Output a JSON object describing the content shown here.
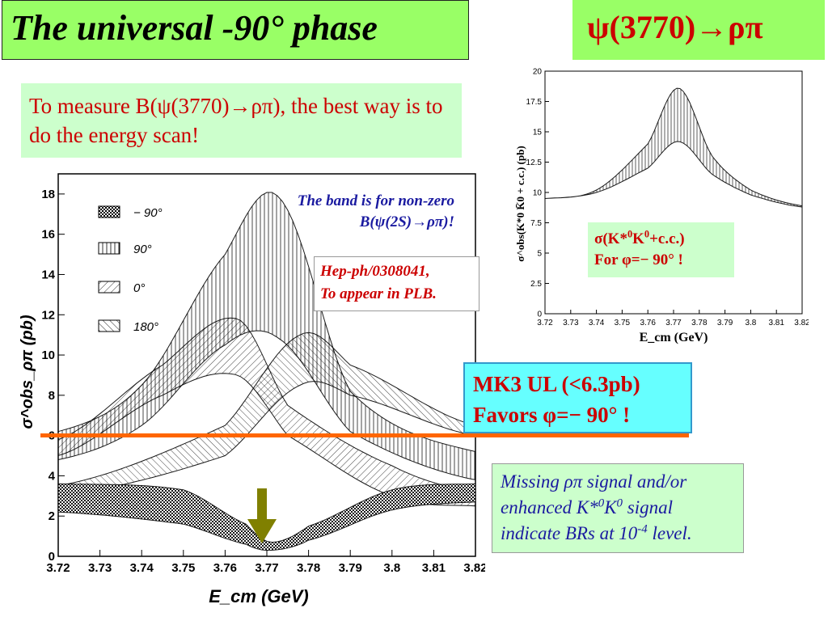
{
  "slide": {
    "title": "The universal -90° phase",
    "decay": "ψ(3770)→ρπ",
    "measure_text": "To measure B(ψ(3770)→ρπ), the best way is to do the energy scan!",
    "band_note_line1": "The band is for non-zero",
    "band_note_line2": "B(ψ(2S)→ρπ)!",
    "hep_line1": "Hep-ph/0308041,",
    "hep_line2": "To appear in PLB.",
    "mk3_line1": "MK3 UL (<6.3pb)",
    "mk3_line2": "Favors φ=− 90° !",
    "sig_line1_pre": "σ(K*",
    "sig_line1_sup1": "0",
    "sig_line1_mid": "K",
    "sig_line1_sup2": "0",
    "sig_line1_post": "+c.c.)",
    "sig_line2": "For φ=− 90° !",
    "missing_line1": "Missing ρπ signal and/or",
    "missing_line2_pre": "enhanced K*",
    "missing_line2_sup1": "0",
    "missing_line2_mid": "K",
    "missing_line2_sup2": "0",
    "missing_line2_post": " signal",
    "missing_line3_pre": "indicate BRs at 10",
    "missing_line3_sup": "-4",
    "missing_line3_post": " level."
  },
  "colors": {
    "title_bg": "#99ff66",
    "note_bg": "#ccffcc",
    "mk3_bg": "#66ffff",
    "accent_red": "#cc0000",
    "note_blue": "#1a1aa0",
    "ul_line": "#ff6600",
    "arrow": "#808000"
  },
  "chart_data": [
    {
      "type": "area",
      "xlabel": "E_cm (GeV)",
      "ylabel": "σ^obs_ρπ (pb)",
      "xlim": [
        3.72,
        3.82
      ],
      "ylim": [
        0,
        19
      ],
      "xticks": [
        "3.72",
        "3.73",
        "3.74",
        "3.75",
        "3.76",
        "3.77",
        "3.78",
        "3.79",
        "3.8",
        "3.81",
        "3.82"
      ],
      "yticks": [
        "0",
        "2",
        "4",
        "6",
        "8",
        "10",
        "12",
        "14",
        "16",
        "18"
      ],
      "legend": [
        "− 90°",
        "90°",
        "0°",
        "180°"
      ],
      "legend_position": "top-left",
      "upper_limit_pb": 6.3,
      "series": [
        {
          "name": "90°",
          "x": [
            3.72,
            3.74,
            3.76,
            3.773,
            3.79,
            3.82
          ],
          "lower": [
            4.8,
            6.5,
            10.5,
            10.8,
            6.2,
            3.8
          ],
          "upper": [
            6.2,
            8.5,
            15.0,
            17.8,
            8.2,
            5.2
          ]
        },
        {
          "name": "0°",
          "x": [
            3.72,
            3.745,
            3.763,
            3.775,
            3.8,
            3.82
          ],
          "lower": [
            5.0,
            8.0,
            9.0,
            6.0,
            3.0,
            2.5
          ],
          "upper": [
            5.8,
            9.5,
            11.8,
            7.5,
            4.5,
            3.2
          ]
        },
        {
          "name": "180°",
          "x": [
            3.72,
            3.76,
            3.778,
            3.79,
            3.82
          ],
          "lower": [
            3.0,
            5.0,
            8.5,
            8.0,
            6.0
          ],
          "upper": [
            3.5,
            6.5,
            11.0,
            9.5,
            6.5
          ]
        },
        {
          "name": "− 90°",
          "x": [
            3.72,
            3.75,
            3.765,
            3.771,
            3.78,
            3.8,
            3.82
          ],
          "lower": [
            2.2,
            1.6,
            0.6,
            0.3,
            0.8,
            2.3,
            2.7
          ],
          "upper": [
            3.6,
            3.3,
            1.6,
            0.7,
            1.5,
            3.3,
            3.6
          ]
        }
      ]
    },
    {
      "type": "area",
      "xlabel": "E_cm (GeV)",
      "ylabel": "σ^obs(K*0 K̄0 + c.c.) (pb)",
      "xlim": [
        3.72,
        3.82
      ],
      "ylim": [
        0,
        20
      ],
      "xticks": [
        "3.72",
        "3.73",
        "3.74",
        "3.75",
        "3.76",
        "3.77",
        "3.78",
        "3.79",
        "3.8",
        "3.81",
        "3.82"
      ],
      "yticks": [
        "0",
        "2.5",
        "5",
        "7.5",
        "10",
        "12.5",
        "15",
        "17.5",
        "20"
      ],
      "series": [
        {
          "name": "",
          "x": [
            3.72,
            3.74,
            3.76,
            3.772,
            3.785,
            3.8,
            3.82
          ],
          "lower": [
            9.5,
            10.0,
            12.0,
            14.2,
            11.5,
            9.8,
            8.8
          ],
          "upper": [
            9.5,
            10.2,
            14.0,
            18.6,
            13.0,
            10.2,
            8.9
          ]
        }
      ]
    }
  ]
}
